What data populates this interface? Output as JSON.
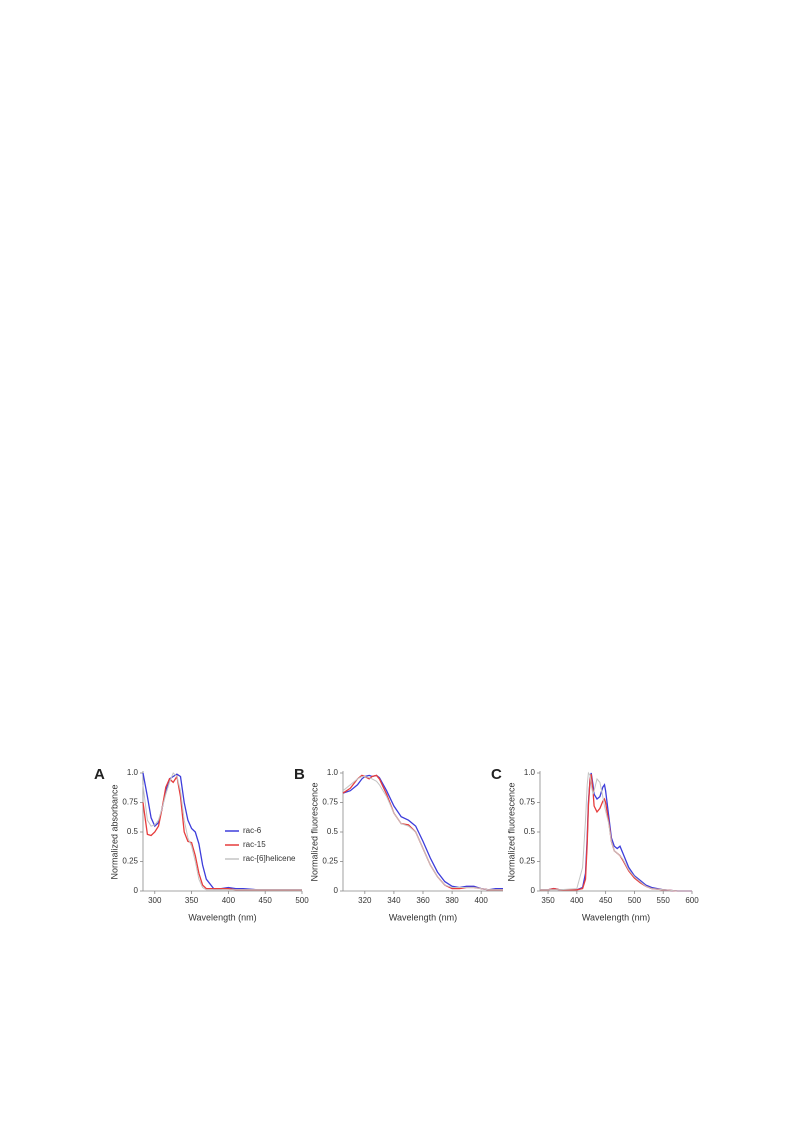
{
  "chart_data": [
    {
      "type": "line",
      "panel": "A",
      "x_label": "Wavelength (nm)",
      "y_label": "Normalized absorbance",
      "x": [
        284,
        290,
        295,
        300,
        305,
        310,
        315,
        320,
        325,
        330,
        335,
        340,
        345,
        350,
        355,
        360,
        365,
        370,
        380,
        390,
        400,
        410,
        420,
        440,
        460,
        500
      ],
      "series": [
        {
          "name": "rac-6",
          "color": "#3d3ddb",
          "values": [
            1.0,
            0.8,
            0.62,
            0.55,
            0.58,
            0.7,
            0.85,
            0.95,
            0.97,
            0.99,
            0.97,
            0.75,
            0.6,
            0.53,
            0.5,
            0.4,
            0.22,
            0.1,
            0.02,
            0.02,
            0.03,
            0.02,
            0.02,
            0.01,
            0.01,
            0.01
          ]
        },
        {
          "name": "rac-15",
          "color": "#e63c3c",
          "values": [
            0.75,
            0.48,
            0.47,
            0.5,
            0.55,
            0.7,
            0.88,
            0.95,
            0.92,
            0.97,
            0.8,
            0.5,
            0.42,
            0.41,
            0.3,
            0.15,
            0.05,
            0.02,
            0.02,
            0.02,
            0.02,
            0.01,
            0.01,
            0.01,
            0.01,
            0.01
          ]
        },
        {
          "name": "rac-[6]helicene",
          "color": "#c4c4c4",
          "values": [
            0.9,
            0.6,
            0.55,
            0.56,
            0.6,
            0.7,
            0.82,
            0.92,
            1.0,
            0.97,
            0.85,
            0.6,
            0.45,
            0.38,
            0.25,
            0.1,
            0.03,
            0.01,
            0.01,
            0.01,
            0.01,
            0.01,
            0.01,
            0.01,
            0.01,
            0.01
          ]
        }
      ],
      "xlim": [
        284,
        500
      ],
      "xticks": [
        300,
        350,
        400,
        450,
        500
      ],
      "ylim": [
        0,
        1
      ],
      "yticks": [
        0,
        0.25,
        0.5,
        0.75,
        {
          "value": 1,
          "label": "1.0"
        }
      ],
      "legend": "center"
    },
    {
      "type": "line",
      "panel": "B",
      "x_label": "Wavelength (nm)",
      "y_label": "Normalized fluorescence",
      "x": [
        305,
        310,
        315,
        318,
        320,
        323,
        325,
        328,
        330,
        335,
        340,
        345,
        350,
        355,
        360,
        365,
        370,
        375,
        380,
        385,
        390,
        393,
        395,
        400,
        405,
        410,
        415
      ],
      "series": [
        {
          "name": "rac-6",
          "color": "#3d3ddb",
          "values": [
            0.83,
            0.85,
            0.9,
            0.95,
            0.97,
            0.98,
            0.97,
            0.98,
            0.96,
            0.85,
            0.72,
            0.63,
            0.6,
            0.55,
            0.42,
            0.28,
            0.16,
            0.08,
            0.04,
            0.03,
            0.04,
            0.04,
            0.04,
            0.02,
            0.01,
            0.02,
            0.02
          ]
        },
        {
          "name": "rac-15",
          "color": "#e63c3c",
          "values": [
            0.83,
            0.87,
            0.95,
            0.98,
            0.97,
            0.95,
            0.97,
            0.98,
            0.95,
            0.82,
            0.66,
            0.57,
            0.56,
            0.5,
            0.36,
            0.22,
            0.12,
            0.05,
            0.02,
            0.02,
            0.03,
            0.03,
            0.03,
            0.02,
            0.01,
            0.01,
            0.01
          ]
        },
        {
          "name": "rac-[6]helicene",
          "color": "#c4c4c4",
          "values": [
            0.85,
            0.9,
            0.95,
            0.97,
            0.97,
            0.96,
            0.95,
            0.93,
            0.9,
            0.8,
            0.66,
            0.57,
            0.55,
            0.5,
            0.36,
            0.22,
            0.12,
            0.05,
            0.03,
            0.03,
            0.03,
            0.03,
            0.03,
            0.02,
            0.01,
            0.01,
            0.01
          ]
        }
      ],
      "xlim": [
        305,
        415
      ],
      "xticks": [
        320,
        340,
        360,
        380,
        400
      ],
      "ylim": [
        0,
        1
      ],
      "yticks": [
        0,
        0.25,
        0.5,
        0.75,
        {
          "value": 1,
          "label": "1.0"
        }
      ]
    },
    {
      "type": "line",
      "panel": "C",
      "x_label": "Wavelength (nm)",
      "y_label": "Normalized fluorescence",
      "x": [
        336,
        350,
        360,
        370,
        400,
        410,
        415,
        418,
        420,
        423,
        425,
        428,
        430,
        435,
        440,
        445,
        448,
        450,
        455,
        460,
        465,
        470,
        475,
        480,
        490,
        500,
        510,
        520,
        530,
        550,
        575,
        600
      ],
      "series": [
        {
          "name": "rac-6",
          "color": "#3d3ddb",
          "values": [
            0.01,
            0.01,
            0.02,
            0.01,
            0.01,
            0.03,
            0.15,
            0.45,
            0.75,
            0.95,
            1.0,
            0.9,
            0.82,
            0.78,
            0.8,
            0.88,
            0.9,
            0.85,
            0.65,
            0.45,
            0.38,
            0.36,
            0.38,
            0.32,
            0.2,
            0.13,
            0.09,
            0.05,
            0.03,
            0.01,
            0,
            0
          ]
        },
        {
          "name": "rac-15",
          "color": "#e63c3c",
          "values": [
            0.01,
            0.01,
            0.02,
            0.01,
            0.01,
            0.02,
            0.1,
            0.4,
            0.72,
            0.95,
            0.99,
            0.85,
            0.72,
            0.67,
            0.7,
            0.76,
            0.78,
            0.75,
            0.6,
            0.42,
            0.34,
            0.32,
            0.3,
            0.26,
            0.17,
            0.11,
            0.07,
            0.04,
            0.02,
            0.01,
            0,
            0
          ]
        },
        {
          "name": "rac-[6]helicene",
          "color": "#c4c4c4",
          "values": [
            0.01,
            0.01,
            0.01,
            0.01,
            0.02,
            0.2,
            0.6,
            0.9,
            1.0,
            0.98,
            0.9,
            0.82,
            0.85,
            0.95,
            0.92,
            0.8,
            0.72,
            0.68,
            0.58,
            0.42,
            0.34,
            0.32,
            0.3,
            0.27,
            0.18,
            0.12,
            0.08,
            0.04,
            0.02,
            0.01,
            0,
            0
          ]
        }
      ],
      "xlim": [
        336,
        600
      ],
      "xticks": [
        350,
        400,
        450,
        500,
        550,
        600
      ],
      "ylim": [
        0,
        1
      ],
      "yticks": [
        0,
        0.25,
        0.5,
        0.75,
        {
          "value": 1,
          "label": "1.0"
        }
      ]
    }
  ]
}
